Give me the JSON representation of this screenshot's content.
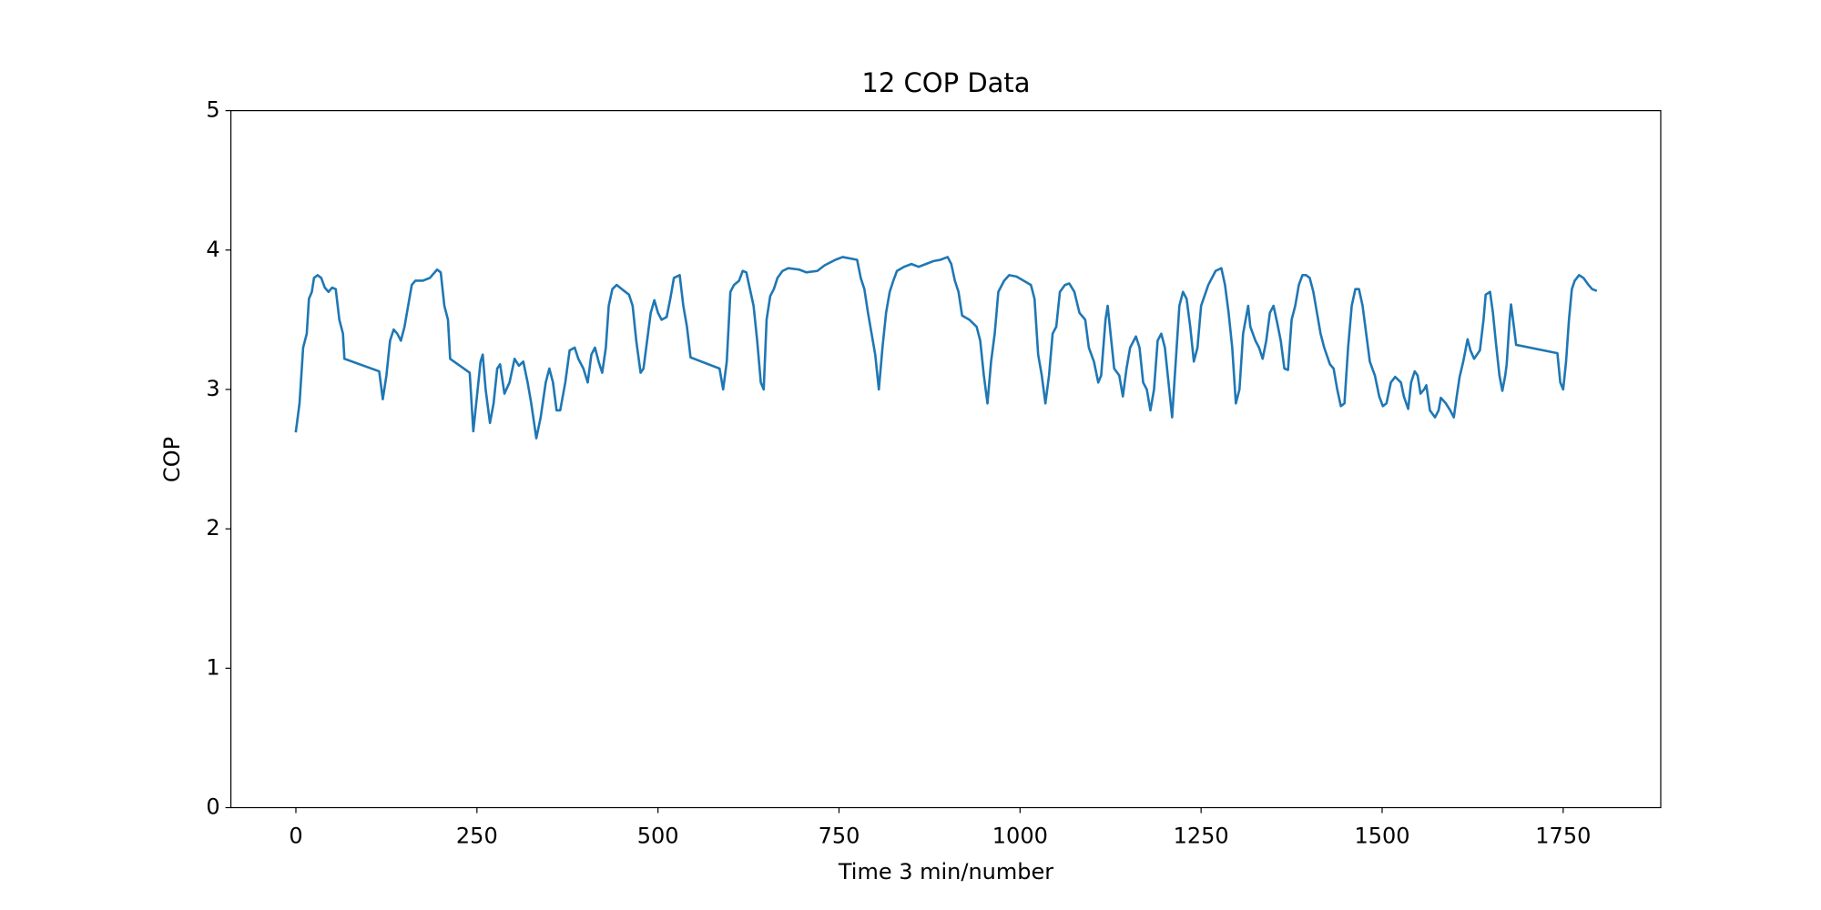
{
  "chart_data": {
    "type": "line",
    "title": "12 COP Data",
    "x_label": "Time 3 min/number",
    "y_label": "COP",
    "color": "#1f77b4",
    "x": [
      0,
      5,
      10,
      15,
      18,
      22,
      25,
      30,
      35,
      40,
      45,
      50,
      55,
      60,
      65,
      67,
      115,
      120,
      125,
      130,
      135,
      140,
      145,
      150,
      155,
      160,
      165,
      175,
      185,
      195,
      200,
      205,
      210,
      213,
      240,
      245,
      250,
      255,
      258,
      262,
      268,
      273,
      278,
      282,
      288,
      295,
      302,
      308,
      314,
      320,
      325,
      332,
      338,
      345,
      350,
      355,
      360,
      365,
      372,
      378,
      385,
      390,
      397,
      403,
      408,
      413,
      418,
      423,
      428,
      432,
      437,
      443,
      450,
      460,
      465,
      470,
      476,
      480,
      485,
      490,
      495,
      500,
      505,
      512,
      517,
      522,
      530,
      535,
      540,
      545,
      585,
      590,
      595,
      600,
      605,
      612,
      617,
      622,
      627,
      632,
      637,
      642,
      646,
      650,
      655,
      660,
      665,
      672,
      680,
      695,
      705,
      720,
      730,
      745,
      755,
      775,
      780,
      785,
      790,
      795,
      800,
      805,
      810,
      815,
      820,
      825,
      830,
      840,
      850,
      860,
      870,
      880,
      890,
      900,
      905,
      910,
      915,
      920,
      930,
      940,
      945,
      950,
      955,
      960,
      965,
      970,
      978,
      985,
      995,
      1005,
      1015,
      1020,
      1025,
      1030,
      1035,
      1040,
      1045,
      1050,
      1055,
      1062,
      1068,
      1075,
      1082,
      1090,
      1095,
      1102,
      1108,
      1112,
      1118,
      1121,
      1125,
      1130,
      1137,
      1142,
      1147,
      1152,
      1160,
      1165,
      1170,
      1175,
      1180,
      1185,
      1190,
      1195,
      1200,
      1205,
      1210,
      1215,
      1220,
      1225,
      1230,
      1235,
      1240,
      1245,
      1250,
      1260,
      1270,
      1278,
      1283,
      1288,
      1293,
      1298,
      1303,
      1308,
      1315,
      1318,
      1325,
      1330,
      1335,
      1340,
      1345,
      1350,
      1355,
      1360,
      1365,
      1370,
      1375,
      1380,
      1385,
      1390,
      1395,
      1400,
      1405,
      1410,
      1415,
      1420,
      1428,
      1433,
      1438,
      1443,
      1448,
      1453,
      1458,
      1463,
      1468,
      1473,
      1478,
      1483,
      1490,
      1496,
      1501,
      1506,
      1512,
      1518,
      1526,
      1530,
      1536,
      1540,
      1545,
      1549,
      1553,
      1558,
      1561,
      1566,
      1573,
      1578,
      1581,
      1588,
      1594,
      1599,
      1603,
      1607,
      1612,
      1618,
      1622,
      1627,
      1635,
      1640,
      1643,
      1649,
      1653,
      1657,
      1662,
      1666,
      1670,
      1672,
      1676,
      1678,
      1682,
      1685,
      1742,
      1746,
      1750,
      1754,
      1758,
      1762,
      1766,
      1772,
      1778,
      1785,
      1790,
      1795
    ],
    "values": [
      2.7,
      2.9,
      3.3,
      3.4,
      3.65,
      3.7,
      3.8,
      3.82,
      3.8,
      3.73,
      3.7,
      3.73,
      3.72,
      3.5,
      3.4,
      3.22,
      3.13,
      2.93,
      3.1,
      3.35,
      3.43,
      3.4,
      3.35,
      3.45,
      3.6,
      3.75,
      3.78,
      3.78,
      3.8,
      3.86,
      3.84,
      3.6,
      3.5,
      3.22,
      3.12,
      2.7,
      2.95,
      3.2,
      3.25,
      3.0,
      2.76,
      2.9,
      3.15,
      3.18,
      2.97,
      3.05,
      3.22,
      3.17,
      3.2,
      3.05,
      2.9,
      2.65,
      2.8,
      3.05,
      3.15,
      3.05,
      2.85,
      2.85,
      3.05,
      3.28,
      3.3,
      3.22,
      3.15,
      3.05,
      3.25,
      3.3,
      3.2,
      3.12,
      3.3,
      3.6,
      3.72,
      3.75,
      3.72,
      3.68,
      3.6,
      3.35,
      3.12,
      3.15,
      3.35,
      3.55,
      3.64,
      3.55,
      3.5,
      3.52,
      3.65,
      3.8,
      3.82,
      3.6,
      3.45,
      3.23,
      3.15,
      3.0,
      3.2,
      3.7,
      3.75,
      3.78,
      3.85,
      3.84,
      3.72,
      3.6,
      3.35,
      3.05,
      3.0,
      3.5,
      3.67,
      3.72,
      3.8,
      3.85,
      3.87,
      3.86,
      3.84,
      3.85,
      3.89,
      3.93,
      3.95,
      3.93,
      3.8,
      3.72,
      3.55,
      3.4,
      3.25,
      3.0,
      3.3,
      3.55,
      3.7,
      3.78,
      3.85,
      3.88,
      3.9,
      3.88,
      3.9,
      3.92,
      3.93,
      3.95,
      3.9,
      3.78,
      3.7,
      3.53,
      3.5,
      3.45,
      3.35,
      3.1,
      2.9,
      3.2,
      3.4,
      3.7,
      3.78,
      3.82,
      3.81,
      3.78,
      3.75,
      3.65,
      3.25,
      3.1,
      2.9,
      3.1,
      3.4,
      3.45,
      3.7,
      3.75,
      3.76,
      3.7,
      3.55,
      3.5,
      3.3,
      3.2,
      3.05,
      3.1,
      3.5,
      3.6,
      3.4,
      3.15,
      3.1,
      2.95,
      3.15,
      3.3,
      3.38,
      3.3,
      3.05,
      3.0,
      2.85,
      3.0,
      3.35,
      3.4,
      3.3,
      3.05,
      2.8,
      3.2,
      3.6,
      3.7,
      3.65,
      3.45,
      3.2,
      3.3,
      3.6,
      3.75,
      3.85,
      3.87,
      3.75,
      3.55,
      3.3,
      2.9,
      3.0,
      3.4,
      3.6,
      3.45,
      3.35,
      3.3,
      3.22,
      3.35,
      3.55,
      3.6,
      3.48,
      3.35,
      3.15,
      3.14,
      3.5,
      3.6,
      3.75,
      3.82,
      3.82,
      3.8,
      3.7,
      3.55,
      3.4,
      3.3,
      3.18,
      3.15,
      3.0,
      2.88,
      2.9,
      3.3,
      3.6,
      3.72,
      3.72,
      3.6,
      3.4,
      3.2,
      3.1,
      2.95,
      2.88,
      2.9,
      3.05,
      3.09,
      3.05,
      2.95,
      2.86,
      3.05,
      3.13,
      3.1,
      2.97,
      3.0,
      3.03,
      2.85,
      2.8,
      2.85,
      2.94,
      2.9,
      2.85,
      2.8,
      2.95,
      3.09,
      3.2,
      3.36,
      3.28,
      3.22,
      3.28,
      3.5,
      3.68,
      3.7,
      3.55,
      3.34,
      3.1,
      2.99,
      3.1,
      3.18,
      3.5,
      3.61,
      3.45,
      3.32,
      3.26,
      3.05,
      3.0,
      3.2,
      3.5,
      3.72,
      3.78,
      3.82,
      3.8,
      3.75,
      3.72,
      3.71
    ],
    "xlim": [
      -89.75,
      1884.75
    ],
    "xticks": [
      0,
      250,
      500,
      750,
      1000,
      1250,
      1500,
      1750
    ],
    "ylim": [
      0,
      5
    ],
    "yticks": [
      0,
      1,
      2,
      3,
      4,
      5
    ],
    "grid": false
  }
}
